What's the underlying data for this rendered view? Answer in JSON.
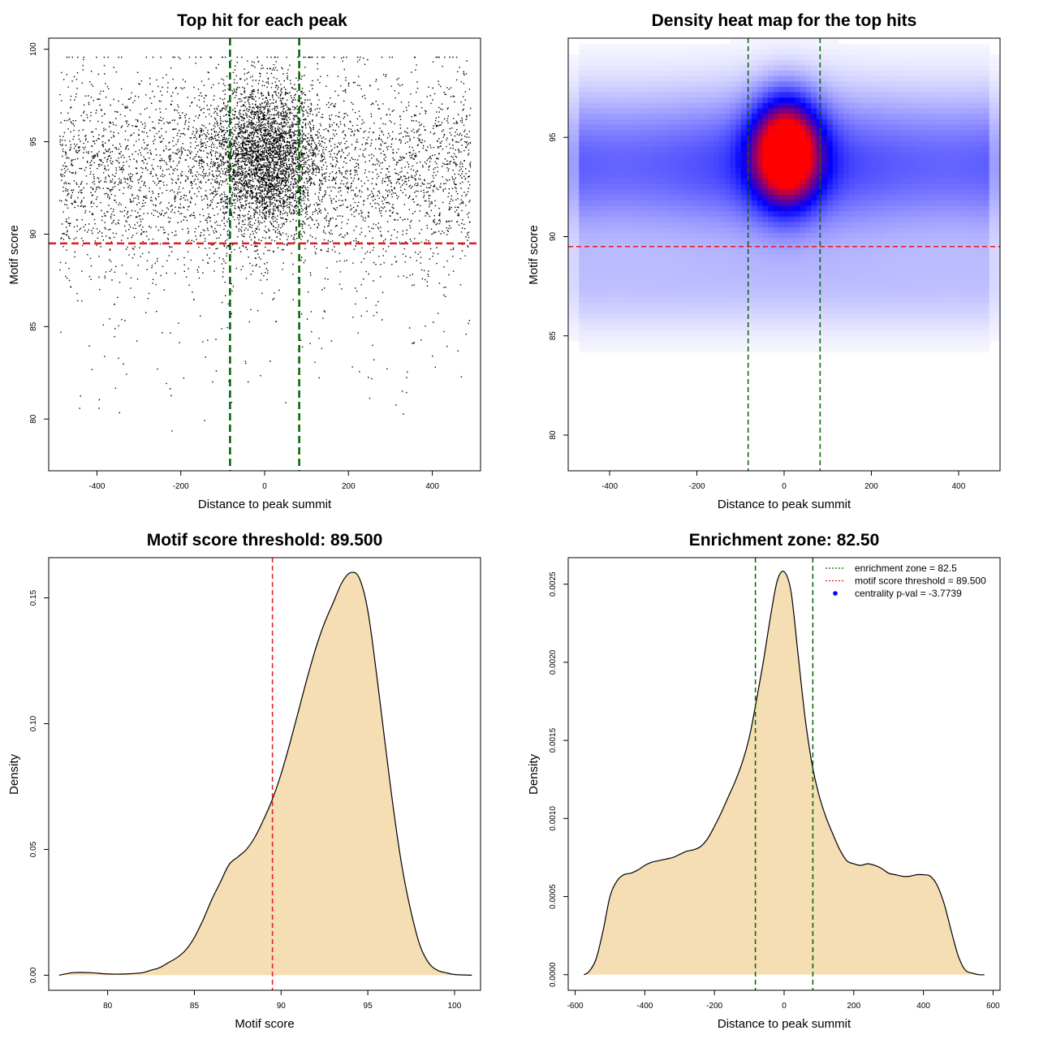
{
  "chart_data": [
    {
      "type": "scatter",
      "title": "Top hit for each peak",
      "xlabel": "Distance to peak summit",
      "ylabel": "Motif score",
      "xlim": [
        -515,
        515
      ],
      "ylim": [
        77.2,
        100.6
      ],
      "xticks": [
        -400,
        -200,
        0,
        200,
        400
      ],
      "yticks": [
        80,
        85,
        90,
        95,
        100
      ],
      "point_color": "#000000",
      "vlines": [
        -82.5,
        82.5
      ],
      "vline_color": "#006400",
      "hline": 89.5,
      "hline_color": "#e31a1c",
      "x_range_of_points": [
        -490,
        490
      ],
      "y_peak_density": {
        "x": 0,
        "y": 94
      }
    },
    {
      "type": "heatmap",
      "title": "Density heat map for the top hits",
      "xlabel": "Distance to peak summit",
      "ylabel": "Motif score",
      "xlim": [
        -495,
        495
      ],
      "ylim": [
        78.2,
        100
      ],
      "xticks": [
        -400,
        -200,
        0,
        200,
        400
      ],
      "yticks": [
        80,
        85,
        90,
        95
      ],
      "colors": [
        "#ffffff",
        "#0000ff",
        "#ff0000"
      ],
      "hotspot": {
        "x": 5,
        "y": 94.3
      },
      "vlines": [
        -82.5,
        82.5
      ],
      "vline_color": "#006400",
      "hline": 89.5,
      "hline_color": "#e31a1c"
    },
    {
      "type": "area",
      "title": "Motif score threshold: 89.500",
      "xlabel": "Motif score",
      "ylabel": "Density",
      "xlim": [
        76.6,
        101.5
      ],
      "ylim": [
        -0.006,
        0.166
      ],
      "xticks": [
        80,
        85,
        90,
        95,
        100
      ],
      "yticks": [
        0.0,
        0.05,
        0.1,
        0.15
      ],
      "ytick_labels": [
        "0.00",
        "0.05",
        "0.10",
        "0.15"
      ],
      "fill_color": "#f5deb3",
      "vline": 89.5,
      "vline_color": "#e31a1c",
      "x": [
        77.2,
        78,
        79,
        80,
        81,
        82,
        82.5,
        83,
        83.5,
        84,
        84.5,
        85,
        85.5,
        86,
        86.5,
        87,
        87.5,
        88,
        88.5,
        89,
        89.5,
        90,
        90.5,
        91,
        91.5,
        92,
        92.5,
        93,
        93.5,
        94,
        94.5,
        95,
        95.5,
        96,
        96.5,
        97,
        97.5,
        98,
        98.5,
        99,
        99.5,
        100,
        101
      ],
      "y": [
        0.0,
        0.001,
        0.001,
        0.0005,
        0.0005,
        0.001,
        0.002,
        0.003,
        0.005,
        0.007,
        0.01,
        0.015,
        0.022,
        0.03,
        0.037,
        0.044,
        0.047,
        0.05,
        0.055,
        0.062,
        0.07,
        0.08,
        0.092,
        0.105,
        0.118,
        0.13,
        0.14,
        0.148,
        0.156,
        0.16,
        0.158,
        0.145,
        0.12,
        0.092,
        0.065,
        0.042,
        0.025,
        0.012,
        0.005,
        0.002,
        0.001,
        0.0003,
        0.0
      ]
    },
    {
      "type": "area",
      "title": "Enrichment zone: 82.50",
      "xlabel": "Distance to peak summit",
      "ylabel": "Density",
      "xlim": [
        -620,
        620
      ],
      "ylim": [
        -0.0001,
        0.00267
      ],
      "xticks": [
        -600,
        -400,
        -200,
        0,
        200,
        400,
        600
      ],
      "yticks": [
        0.0,
        0.0005,
        0.001,
        0.0015,
        0.002,
        0.0025
      ],
      "ytick_labels": [
        "0.0000",
        "0.0005",
        "0.0010",
        "0.0015",
        "0.0020",
        "0.0025"
      ],
      "fill_color": "#f5deb3",
      "vlines": [
        -82.5,
        82.5
      ],
      "vline_color": "#006400",
      "legend": {
        "position": "top-right",
        "entries": [
          {
            "label": "enrichment zone = 82.5",
            "color": "#006400",
            "style": "dotted"
          },
          {
            "label": "motif score threshold = 89.500",
            "color": "#e31a1c",
            "style": "dotted"
          },
          {
            "label": "centrality p-val = -3.7739",
            "color": "#0000ff",
            "style": "point"
          }
        ]
      },
      "x": [
        -575,
        -560,
        -540,
        -520,
        -500,
        -480,
        -460,
        -440,
        -420,
        -400,
        -380,
        -360,
        -340,
        -320,
        -300,
        -280,
        -260,
        -240,
        -220,
        -200,
        -180,
        -160,
        -140,
        -120,
        -100,
        -80,
        -60,
        -40,
        -20,
        0,
        20,
        40,
        60,
        80,
        100,
        120,
        140,
        160,
        180,
        200,
        220,
        240,
        260,
        280,
        300,
        320,
        340,
        360,
        380,
        400,
        420,
        440,
        460,
        480,
        500,
        520,
        540,
        560,
        575
      ],
      "y": [
        0.0,
        2e-05,
        0.0001,
        0.00028,
        0.0005,
        0.0006,
        0.00064,
        0.00065,
        0.00067,
        0.0007,
        0.00072,
        0.00073,
        0.00074,
        0.00075,
        0.00077,
        0.00079,
        0.0008,
        0.00082,
        0.00087,
        0.00095,
        0.00104,
        0.00114,
        0.00124,
        0.00136,
        0.00152,
        0.00175,
        0.002,
        0.00228,
        0.00252,
        0.00258,
        0.00245,
        0.00205,
        0.00165,
        0.00135,
        0.00115,
        0.00101,
        0.0009,
        0.0008,
        0.00073,
        0.00071,
        0.0007,
        0.00071,
        0.0007,
        0.00068,
        0.00065,
        0.00064,
        0.00063,
        0.00063,
        0.00064,
        0.00064,
        0.00063,
        0.00057,
        0.00045,
        0.00028,
        0.00012,
        3e-05,
        1e-05,
        0.0,
        0.0
      ]
    }
  ]
}
